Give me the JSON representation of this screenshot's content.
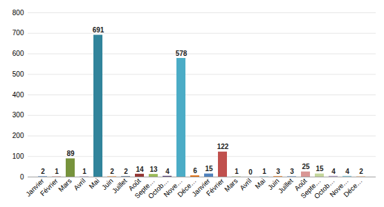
{
  "chart_data": {
    "type": "bar",
    "categories": [
      "Janvier",
      "Février",
      "Mars",
      "Avril",
      "Mai",
      "Juin",
      "Juillet",
      "Août",
      "Septe…",
      "Octob…",
      "Nove…",
      "Déce…",
      "Janvier",
      "Février",
      "Mars",
      "Avril",
      "Mai",
      "Juin",
      "Juillet",
      "Août",
      "Septe…",
      "Octob…",
      "Nove…",
      "Déce…"
    ],
    "values": [
      2,
      1,
      89,
      1,
      691,
      2,
      2,
      14,
      13,
      4,
      578,
      6,
      15,
      122,
      1,
      0,
      1,
      3,
      3,
      25,
      15,
      4,
      4,
      2
    ],
    "colors": [
      "#4f81bd",
      "#c0504d",
      "#77933c",
      "#8064a2",
      "#31849b",
      "#f79646",
      "#2c4d75",
      "#953735",
      "#9bbb59",
      "#604a7b",
      "#4bacc6",
      "#e46c0a",
      "#4f81bd",
      "#c0504d",
      "#9bbb59",
      "#8064a2",
      "#4bacc6",
      "#f79646",
      "#95b3d7",
      "#d99694",
      "#c3d69b",
      "#b3a2c7",
      "#93cddd",
      "#fac090"
    ],
    "ylim": [
      0,
      800
    ],
    "yticks": [
      0,
      100,
      200,
      300,
      400,
      500,
      600,
      700,
      800
    ],
    "grid": true,
    "data_labels": true
  }
}
